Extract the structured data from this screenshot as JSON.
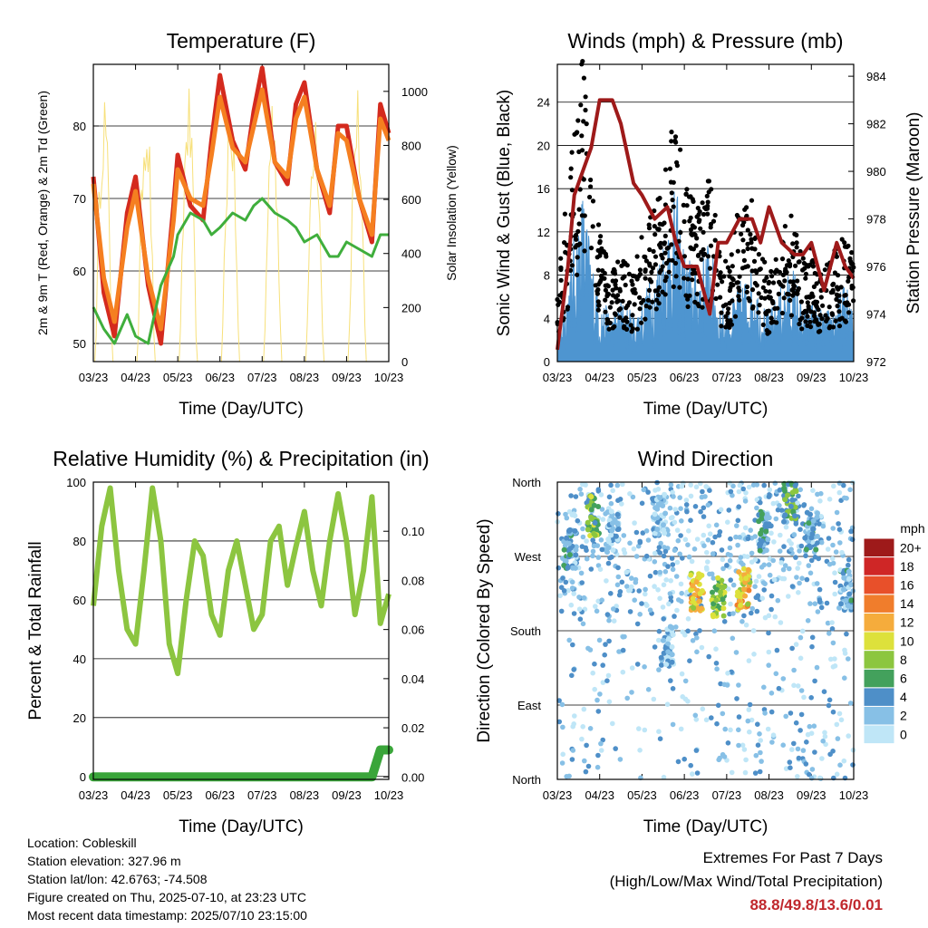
{
  "xticks": [
    "03/23",
    "04/23",
    "05/23",
    "06/23",
    "07/23",
    "08/23",
    "09/23",
    "10/23"
  ],
  "xlabel": "Time (Day/UTC)",
  "colors": {
    "temp2m": "#d42a1e",
    "temp9m": "#f57f20",
    "dewpoint": "#3fae3c",
    "solar": "#f7e07a",
    "gust": "#000000",
    "wind": "#4e95d0",
    "pressure": "#9e1a1a",
    "rh": "#8cc540",
    "rain": "#3aa53a"
  },
  "info": {
    "location": "Location: Cobleskill",
    "elevation": "Station elevation: 327.96 m",
    "latlon": "Station lat/lon: 42.6763; -74.508",
    "created": "Figure created on Thu, 2025-07-10, at 23:23 UTC",
    "recent": "Most recent data timestamp: 2025/07/10 23:15:00"
  },
  "extremes": {
    "title": "Extremes For Past 7 Days",
    "subtitle": "(High/Low/Max Wind/Total Precipitation)",
    "values": "88.8/49.8/13.6/0.01"
  },
  "chart_data": [
    {
      "type": "line",
      "title": "Temperature (F)",
      "xlabel": "Time (Day/UTC)",
      "ylabel": "2m & 9m T (Red, Orange) & 2m Td (Green)",
      "y2label": "Solar Insolation (Yellow)",
      "ylim": [
        47.5,
        88.5
      ],
      "y2lim": [
        0,
        1100
      ],
      "yticks": [
        50,
        60,
        70,
        80
      ],
      "y2ticks": [
        0,
        200,
        400,
        600,
        800,
        1000
      ],
      "x": [
        0,
        0.25,
        0.5,
        0.8,
        1,
        1.3,
        1.6,
        1.9,
        2,
        2.3,
        2.6,
        2.8,
        3,
        3.3,
        3.6,
        3.8,
        4,
        4.3,
        4.6,
        4.8,
        5,
        5.3,
        5.6,
        5.8,
        6,
        6.3,
        6.6,
        6.8,
        7
      ],
      "series": [
        {
          "key": "temp2m",
          "values": [
            73,
            57,
            51,
            68,
            73,
            58,
            50,
            69,
            76,
            69,
            67,
            78,
            87,
            78,
            74,
            82,
            88,
            75,
            72,
            83,
            86,
            74,
            68,
            80,
            80,
            70,
            64,
            83,
            79
          ]
        },
        {
          "key": "temp9m",
          "values": [
            72,
            59,
            53,
            66,
            71,
            59,
            52,
            67,
            74,
            70,
            69,
            76,
            84,
            77,
            75,
            80,
            85,
            75,
            73,
            81,
            84,
            74,
            69,
            79,
            78,
            70,
            65,
            81,
            78
          ]
        },
        {
          "key": "dewpoint",
          "values": [
            55,
            52,
            50,
            54,
            51,
            50,
            58,
            62,
            65,
            68,
            67,
            65,
            66,
            68,
            67,
            69,
            70,
            68,
            67,
            66,
            64,
            65,
            62,
            62,
            64,
            63,
            62,
            65,
            65
          ]
        }
      ]
    },
    {
      "type": "line",
      "title": "Winds (mph) & Pressure (mb)",
      "xlabel": "Time (Day/UTC)",
      "ylabel": "Sonic Wind & Gust (Blue, Black)",
      "y2label": "Station Pressure (Maroon)",
      "ylim": [
        0,
        27.5
      ],
      "y2lim": [
        972,
        984.5
      ],
      "yticks": [
        0,
        4,
        8,
        12,
        16,
        20,
        24
      ],
      "y2ticks": [
        972,
        974,
        976,
        978,
        980,
        982,
        984
      ],
      "x": [
        0,
        0.25,
        0.4,
        0.6,
        0.8,
        1,
        1.3,
        1.5,
        1.8,
        2,
        2.3,
        2.6,
        2.8,
        3,
        3.3,
        3.6,
        3.8,
        4,
        4.3,
        4.6,
        4.8,
        5,
        5.3,
        5.6,
        5.8,
        6,
        6.3,
        6.6,
        6.8,
        7
      ],
      "series": [
        {
          "key": "pressure",
          "values": [
            972.5,
            976,
            979,
            980,
            981,
            983,
            983,
            982,
            979.5,
            979,
            978,
            978.5,
            977,
            976,
            976,
            974,
            977,
            977,
            978,
            978,
            977,
            978.5,
            977,
            976.5,
            976.5,
            977,
            975,
            977,
            976,
            975.5
          ]
        },
        {
          "key": "gust",
          "values": [
            6,
            14,
            18,
            24,
            16,
            10,
            7,
            9,
            7,
            10,
            12,
            16,
            20,
            14,
            12,
            16,
            9,
            8,
            12,
            13,
            9,
            7,
            10,
            12,
            8,
            9,
            7,
            9,
            10,
            8
          ]
        },
        {
          "key": "wind",
          "values": [
            2,
            5,
            8,
            11,
            7,
            4,
            3,
            4,
            3,
            4,
            6,
            9,
            11,
            7,
            6,
            8,
            4,
            3,
            5,
            6,
            4,
            3,
            5,
            6,
            3,
            4,
            3,
            4,
            5,
            3
          ]
        }
      ]
    },
    {
      "type": "line",
      "title": "Relative Humidity (%) & Precipitation (in)",
      "xlabel": "Time (Day/UTC)",
      "ylabel": "Percent & Total Rainfall",
      "ylim": [
        -1,
        100
      ],
      "y2lim": [
        -0.001,
        0.12
      ],
      "yticks": [
        0,
        20,
        40,
        60,
        80,
        100
      ],
      "y2ticks": [
        "0.00",
        "0.02",
        "0.04",
        "0.06",
        "0.08",
        "0.10"
      ],
      "x": [
        0,
        0.2,
        0.4,
        0.6,
        0.8,
        1,
        1.2,
        1.4,
        1.6,
        1.8,
        2,
        2.2,
        2.4,
        2.6,
        2.8,
        3,
        3.2,
        3.4,
        3.6,
        3.8,
        4,
        4.2,
        4.4,
        4.6,
        4.8,
        5,
        5.2,
        5.4,
        5.6,
        5.8,
        6,
        6.2,
        6.4,
        6.6,
        6.8,
        7
      ],
      "series": [
        {
          "key": "rh",
          "values": [
            58,
            85,
            98,
            70,
            50,
            45,
            70,
            98,
            80,
            45,
            35,
            60,
            80,
            75,
            55,
            48,
            70,
            80,
            65,
            50,
            55,
            80,
            85,
            65,
            78,
            90,
            70,
            58,
            80,
            96,
            80,
            55,
            70,
            95,
            52,
            62
          ]
        },
        {
          "key": "rain",
          "values": [
            0,
            0,
            0,
            0,
            0,
            0,
            0,
            0,
            0,
            0,
            0,
            0,
            0,
            0,
            0,
            0,
            0,
            0,
            0,
            0,
            0,
            0,
            0,
            0,
            0,
            0,
            0,
            0,
            0,
            0,
            0,
            0,
            0,
            0,
            0.011,
            0.011
          ]
        }
      ]
    },
    {
      "type": "scatter",
      "title": "Wind Direction",
      "xlabel": "Time (Day/UTC)",
      "ylabel": "Direction (Colored By Speed)",
      "yticks": [
        "North",
        "East",
        "South",
        "West",
        "North"
      ],
      "ylim": [
        0,
        360
      ],
      "colorbar": {
        "label": "mph",
        "levels": [
          "0",
          "2",
          "4",
          "6",
          "8",
          "10",
          "12",
          "14",
          "16",
          "18",
          "20+"
        ],
        "colors": [
          "#bfe6f7",
          "#87c0e6",
          "#4e8fc8",
          "#43a15c",
          "#8cc63f",
          "#dde13b",
          "#f5ac3c",
          "#f07d2c",
          "#e8502a",
          "#cf2626",
          "#9e1a1a"
        ]
      },
      "clusters": [
        {
          "x": 0.3,
          "dir": 280,
          "speed": 4
        },
        {
          "x": 0.85,
          "dir": 320,
          "speed": 8
        },
        {
          "x": 1.3,
          "dir": 300,
          "speed": 3
        },
        {
          "x": 2.4,
          "dir": 320,
          "speed": 3
        },
        {
          "x": 2.6,
          "dir": 160,
          "speed": 3
        },
        {
          "x": 3.3,
          "dir": 225,
          "speed": 12
        },
        {
          "x": 3.8,
          "dir": 220,
          "speed": 9
        },
        {
          "x": 4.4,
          "dir": 230,
          "speed": 12
        },
        {
          "x": 4.9,
          "dir": 300,
          "speed": 5
        },
        {
          "x": 5.5,
          "dir": 335,
          "speed": 7
        },
        {
          "x": 6.0,
          "dir": 300,
          "speed": 4
        },
        {
          "x": 6.8,
          "dir": 230,
          "speed": 4
        }
      ]
    }
  ]
}
